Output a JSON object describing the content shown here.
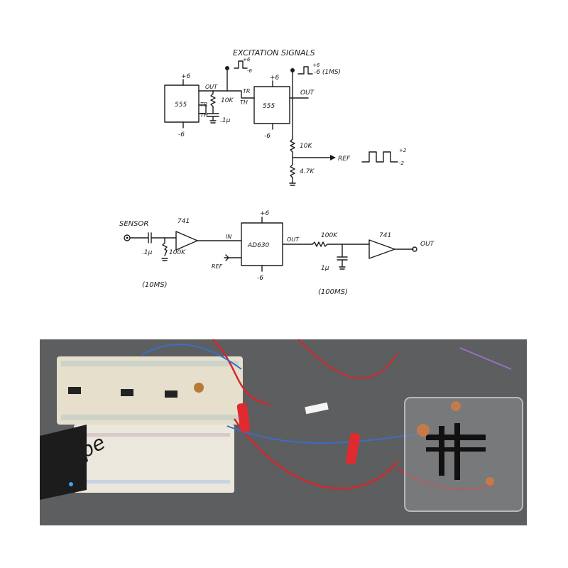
{
  "schematic_top": {
    "excitation": "EXCITATION SIGNALS",
    "u1": "555",
    "u2": "555",
    "u1_vplus": "+6",
    "u1_vminus": "-6",
    "u2_vplus": "+6",
    "u2_vminus": "-6",
    "u1_out": "OUT",
    "u1_tr": "TR",
    "u1_th": "TH",
    "r1": "10K",
    "c1": ".1μ",
    "u2_tr": "TR",
    "u2_th": "TH",
    "u2_out": "OUT",
    "wave1_hi": "+6",
    "wave1_lo": "-6",
    "wave2_hi": "+6",
    "wave2_lo": "-6 (1MS)",
    "r2": "10K",
    "r3": "4.7K",
    "ref": "REF",
    "wave3_hi": "+2",
    "wave3_lo": "-2"
  },
  "schematic_bottom": {
    "sensor": "SENSOR",
    "c_in": ".1μ",
    "r_in": "100K",
    "tau1": "(10MS)",
    "op1": "741",
    "in_label": "IN",
    "ref": "REF",
    "chip": "AD630",
    "chip_vplus": "+6",
    "chip_vminus": "-6",
    "chip_out": "OUT",
    "r_lp": "100K",
    "c_lp": "1μ",
    "tau2": "(100MS)",
    "op2": "741",
    "out": "OUT"
  },
  "photo": {
    "board_logo": "nscope",
    "colors": {
      "bench": "#5d5e5f",
      "breadboard": "#e8e0cc",
      "wire_red": "#d2282d",
      "wire_blue": "#3a6fc4",
      "clip_red": "#e02a2f"
    }
  }
}
